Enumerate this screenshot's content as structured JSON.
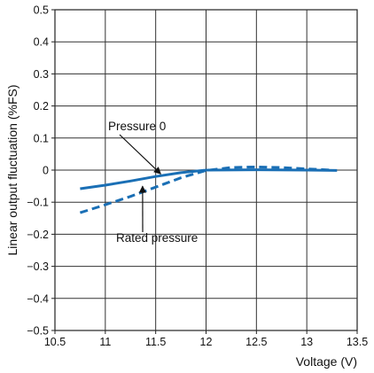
{
  "chart_data": {
    "type": "line",
    "xlabel": "Voltage (V)",
    "ylabel": "Linear output fluctuation (%FS)",
    "xlim": [
      10.5,
      13.5
    ],
    "ylim": [
      -0.5,
      0.5
    ],
    "x_ticks": [
      "10.5",
      "11",
      "11.5",
      "12",
      "12.5",
      "13",
      "13.5"
    ],
    "y_ticks": [
      "0.5",
      "0.4",
      "0.3",
      "0.2",
      "0.1",
      "0",
      "−0.1",
      "−0.2",
      "−0.3",
      "−0.4",
      "−0.5"
    ],
    "grid": true,
    "series": [
      {
        "name": "Pressure 0",
        "style": "solid",
        "color": "#1a6fb5",
        "points": [
          [
            10.75,
            -0.058
          ],
          [
            11.0,
            -0.047
          ],
          [
            11.25,
            -0.034
          ],
          [
            11.5,
            -0.02
          ],
          [
            11.75,
            -0.008
          ],
          [
            12.0,
            0.0
          ],
          [
            12.5,
            0.001
          ],
          [
            13.0,
            0.0
          ],
          [
            13.3,
            -0.001
          ]
        ]
      },
      {
        "name": "Rated pressure",
        "style": "dashed",
        "color": "#1a6fb5",
        "points": [
          [
            10.75,
            -0.133
          ],
          [
            11.0,
            -0.108
          ],
          [
            11.25,
            -0.082
          ],
          [
            11.5,
            -0.053
          ],
          [
            11.75,
            -0.024
          ],
          [
            12.0,
            -0.001
          ],
          [
            12.25,
            0.008
          ],
          [
            12.5,
            0.01
          ],
          [
            12.75,
            0.008
          ],
          [
            13.0,
            0.004
          ],
          [
            13.25,
            0.0
          ]
        ]
      }
    ],
    "annotations": [
      {
        "text": "Pressure 0",
        "target": [
          11.55,
          -0.012
        ]
      },
      {
        "text": "Rated pressure",
        "target": [
          11.37,
          -0.05
        ]
      }
    ]
  }
}
